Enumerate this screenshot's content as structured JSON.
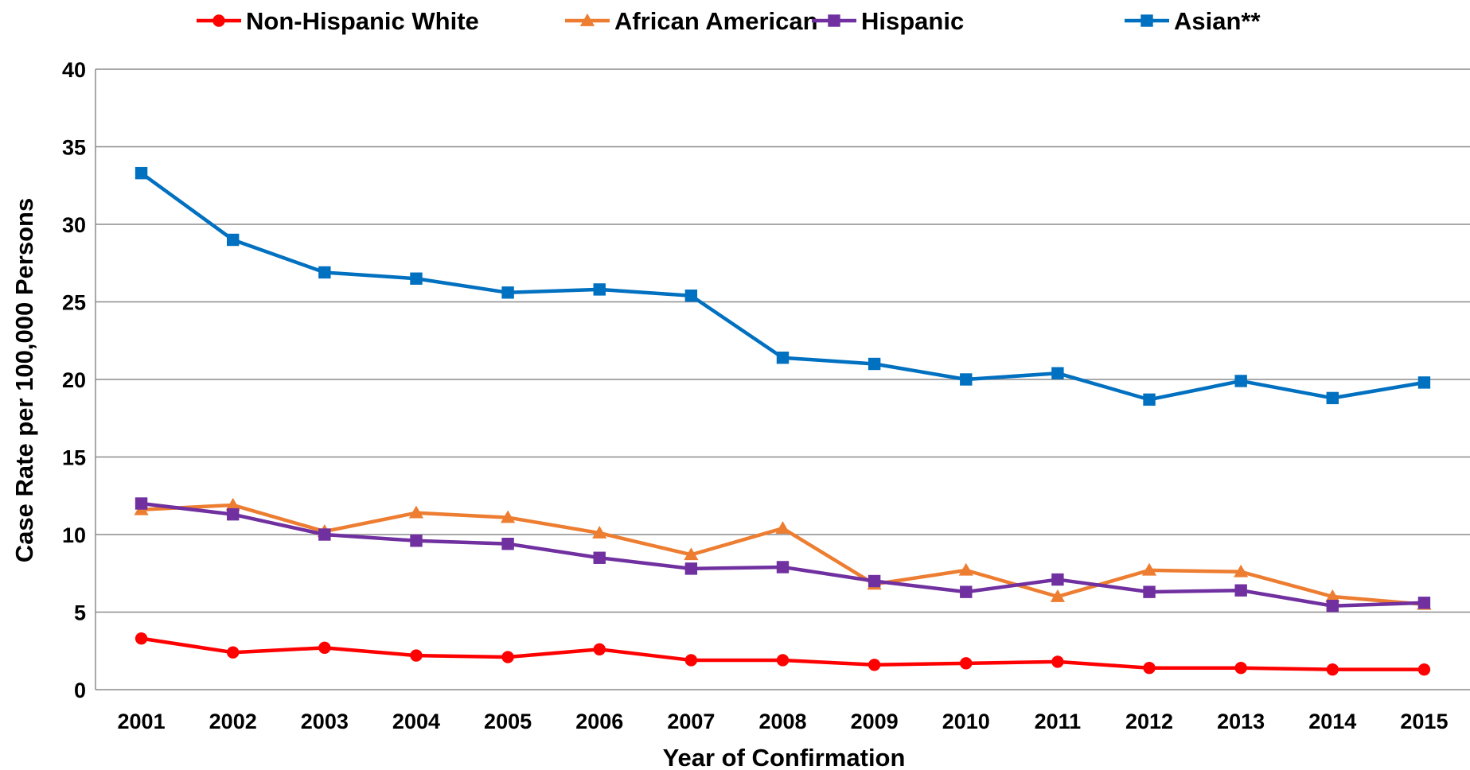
{
  "chart_data": {
    "type": "line",
    "title": "",
    "xlabel": "Year of Confirmation",
    "ylabel": "Case Rate per 100,000 Persons",
    "ylim": [
      0,
      40
    ],
    "yticks": [
      "0",
      "5",
      "10",
      "15",
      "20",
      "25",
      "30",
      "35",
      "40"
    ],
    "categories": [
      "2001",
      "2002",
      "2003",
      "2004",
      "2005",
      "2006",
      "2007",
      "2008",
      "2009",
      "2010",
      "2011",
      "2012",
      "2013",
      "2014",
      "2015"
    ],
    "grid": true,
    "legend": "top",
    "series": [
      {
        "name": "Non-Hispanic White",
        "color": "#ff0000",
        "marker": "circle",
        "values": [
          3.3,
          2.4,
          2.7,
          2.2,
          2.1,
          2.6,
          1.9,
          1.9,
          1.6,
          1.7,
          1.8,
          1.4,
          1.4,
          1.3,
          1.3
        ]
      },
      {
        "name": "African American",
        "color": "#ed7d31",
        "marker": "triangle",
        "values": [
          11.6,
          11.9,
          10.2,
          11.4,
          11.1,
          10.1,
          8.7,
          10.4,
          6.8,
          7.7,
          6.0,
          7.7,
          7.6,
          6.0,
          5.5
        ]
      },
      {
        "name": "Hispanic",
        "color": "#7030a0",
        "marker": "square",
        "values": [
          12.0,
          11.3,
          10.0,
          9.6,
          9.4,
          8.5,
          7.8,
          7.9,
          7.0,
          6.3,
          7.1,
          6.3,
          6.4,
          5.4,
          5.6
        ]
      },
      {
        "name": "Asian**",
        "color": "#0070c0",
        "marker": "square",
        "values": [
          33.3,
          29.0,
          26.9,
          26.5,
          25.6,
          25.8,
          25.4,
          21.4,
          21.0,
          20.0,
          20.4,
          18.7,
          19.9,
          18.8,
          19.8
        ]
      }
    ]
  }
}
